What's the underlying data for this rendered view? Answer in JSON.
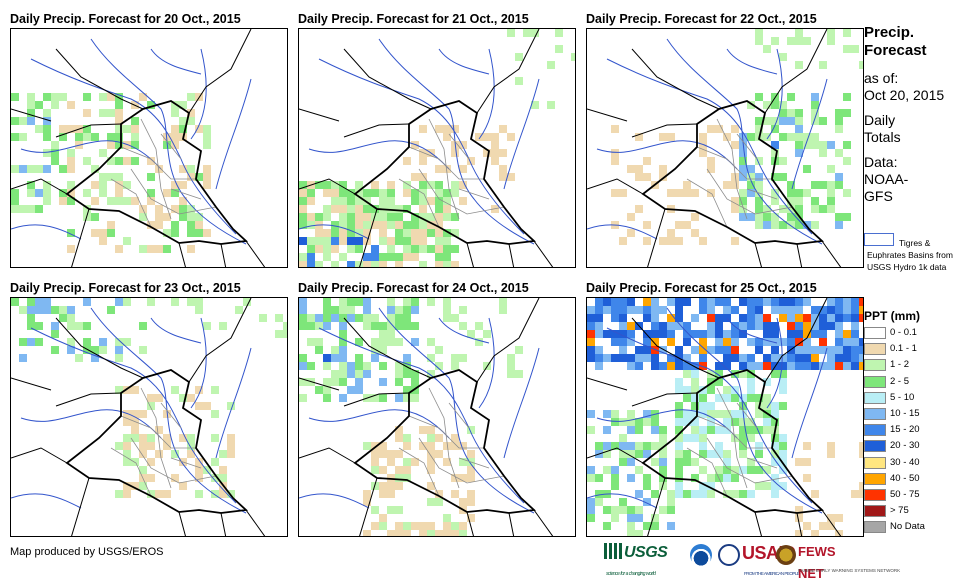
{
  "panels": [
    {
      "id": "p20",
      "title": "Daily Precip. Forecast for 20 Oct., 2015",
      "day": 20
    },
    {
      "id": "p21",
      "title": "Daily Precip. Forecast for 21 Oct., 2015",
      "day": 21
    },
    {
      "id": "p22",
      "title": "Daily Precip. Forecast for 22 Oct., 2015",
      "day": 22
    },
    {
      "id": "p23",
      "title": "Daily Precip. Forecast for 23 Oct., 2015",
      "day": 23
    },
    {
      "id": "p24",
      "title": "Daily Precip. Forecast for 24 Oct., 2015",
      "day": 24
    },
    {
      "id": "p25",
      "title": "Daily Precip. Forecast for 25 Oct., 2015",
      "day": 25
    }
  ],
  "sidebar": {
    "title_line1": "Precip.",
    "title_line2": "Forecast",
    "as_of": "as of:",
    "date": "Oct 20, 2015",
    "period_line1": "Daily",
    "period_line2": "Totals",
    "data_label": "Data:",
    "data_source_line1": "NOAA-",
    "data_source_line2": "GFS"
  },
  "basin_key": {
    "label": "Tigres & Euphrates Basins from USGS Hydro 1k data",
    "outline_color": "#4a6fd0"
  },
  "legend": {
    "title": "PPT (mm)",
    "items": [
      {
        "label": "0 - 0.1",
        "color": "#ffffff"
      },
      {
        "label": "0.1 - 1",
        "color": "#f0d9b0"
      },
      {
        "label": "1 - 2",
        "color": "#bff5b0"
      },
      {
        "label": "2 - 5",
        "color": "#7ee67a"
      },
      {
        "label": "5 - 10",
        "color": "#b9eef5"
      },
      {
        "label": "10 - 15",
        "color": "#7fb8f2"
      },
      {
        "label": "15 - 20",
        "color": "#3f86ea"
      },
      {
        "label": "20 - 30",
        "color": "#1f5fd8"
      },
      {
        "label": "30 - 40",
        "color": "#ffe680"
      },
      {
        "label": "40 - 50",
        "color": "#ffa500"
      },
      {
        "label": "50 - 75",
        "color": "#ff3300"
      },
      {
        "label": "> 75",
        "color": "#a01818"
      },
      {
        "label": "No Data",
        "color": "#a6a6a6"
      }
    ]
  },
  "map_colors": {
    "country_border": "#000000",
    "provinces": "#8c8c8c",
    "rivers": "#3355cc"
  },
  "footer": {
    "credit": "Map produced by USGS/EROS",
    "logos": [
      "USGS",
      "NOAA",
      "USAID",
      "FEWS NET"
    ],
    "usgs_text": "USGS",
    "usgs_tagline": "science for a changing world",
    "usaid_text": "USAID",
    "usaid_tagline": "FROM THE AMERICAN PEOPLE",
    "fews_text": "FEWS NET",
    "fews_tagline": "FAMINE EARLY WARNING SYSTEMS NETWORK"
  }
}
